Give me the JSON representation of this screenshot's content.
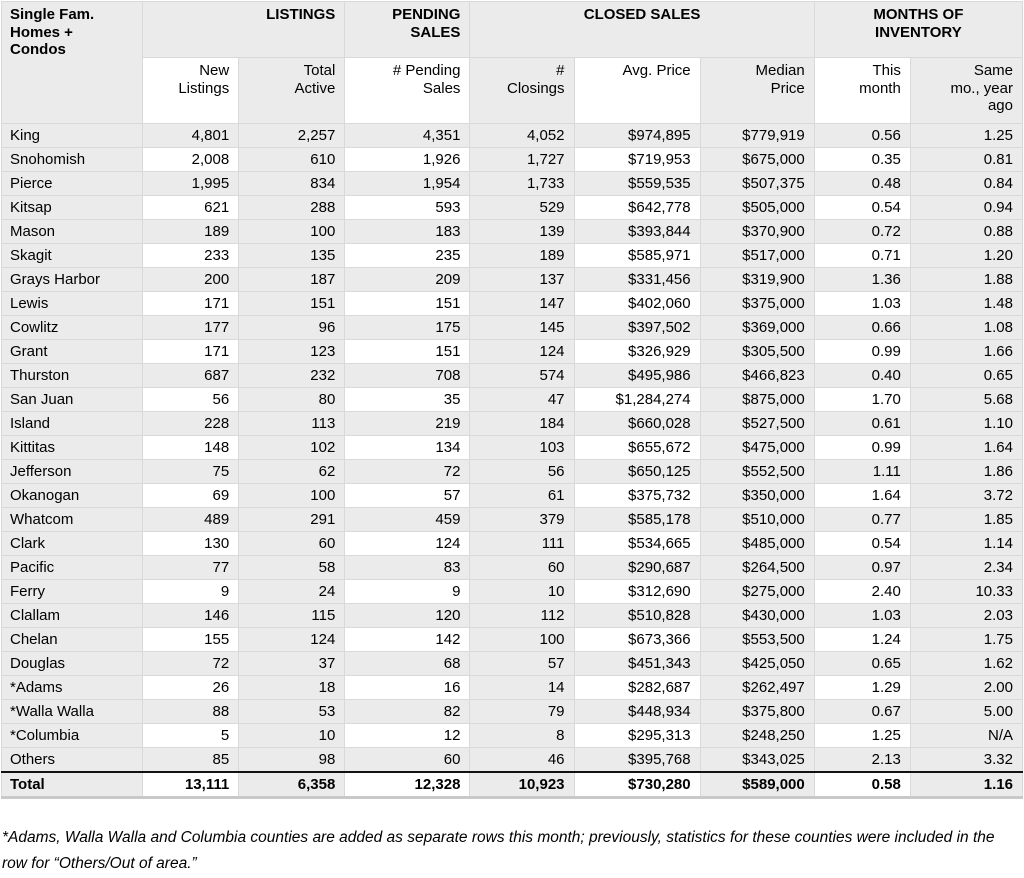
{
  "chart_data": {
    "type": "table",
    "title": "Single Fam.\nHomes +\nCondos",
    "column_groups": [
      {
        "label": "LISTINGS",
        "colspan": 2
      },
      {
        "label": "PENDING\nSALES",
        "colspan": 1
      },
      {
        "label": "CLOSED SALES",
        "colspan": 3
      },
      {
        "label": "MONTHS OF\nINVENTORY",
        "colspan": 2
      }
    ],
    "columns": [
      "New\nListings",
      "Total\nActive",
      "# Pending\nSales",
      "#\nClosings",
      "Avg. Price",
      "Median\nPrice",
      "This\nmonth",
      "Same\nmo., year\nago"
    ],
    "rows": [
      {
        "county": "King",
        "values": [
          "4,801",
          "2,257",
          "4,351",
          "4,052",
          "$974,895",
          "$779,919",
          "0.56",
          "1.25"
        ]
      },
      {
        "county": "Snohomish",
        "values": [
          "2,008",
          "610",
          "1,926",
          "1,727",
          "$719,953",
          "$675,000",
          "0.35",
          "0.81"
        ]
      },
      {
        "county": "Pierce",
        "values": [
          "1,995",
          "834",
          "1,954",
          "1,733",
          "$559,535",
          "$507,375",
          "0.48",
          "0.84"
        ]
      },
      {
        "county": "Kitsap",
        "values": [
          "621",
          "288",
          "593",
          "529",
          "$642,778",
          "$505,000",
          "0.54",
          "0.94"
        ]
      },
      {
        "county": "Mason",
        "values": [
          "189",
          "100",
          "183",
          "139",
          "$393,844",
          "$370,900",
          "0.72",
          "0.88"
        ]
      },
      {
        "county": "Skagit",
        "values": [
          "233",
          "135",
          "235",
          "189",
          "$585,971",
          "$517,000",
          "0.71",
          "1.20"
        ]
      },
      {
        "county": "Grays Harbor",
        "values": [
          "200",
          "187",
          "209",
          "137",
          "$331,456",
          "$319,900",
          "1.36",
          "1.88"
        ]
      },
      {
        "county": "Lewis",
        "values": [
          "171",
          "151",
          "151",
          "147",
          "$402,060",
          "$375,000",
          "1.03",
          "1.48"
        ]
      },
      {
        "county": "Cowlitz",
        "values": [
          "177",
          "96",
          "175",
          "145",
          "$397,502",
          "$369,000",
          "0.66",
          "1.08"
        ]
      },
      {
        "county": "Grant",
        "values": [
          "171",
          "123",
          "151",
          "124",
          "$326,929",
          "$305,500",
          "0.99",
          "1.66"
        ]
      },
      {
        "county": "Thurston",
        "values": [
          "687",
          "232",
          "708",
          "574",
          "$495,986",
          "$466,823",
          "0.40",
          "0.65"
        ]
      },
      {
        "county": "San Juan",
        "values": [
          "56",
          "80",
          "35",
          "47",
          "$1,284,274",
          "$875,000",
          "1.70",
          "5.68"
        ]
      },
      {
        "county": "Island",
        "values": [
          "228",
          "113",
          "219",
          "184",
          "$660,028",
          "$527,500",
          "0.61",
          "1.10"
        ]
      },
      {
        "county": "Kittitas",
        "values": [
          "148",
          "102",
          "134",
          "103",
          "$655,672",
          "$475,000",
          "0.99",
          "1.64"
        ]
      },
      {
        "county": "Jefferson",
        "values": [
          "75",
          "62",
          "72",
          "56",
          "$650,125",
          "$552,500",
          "1.11",
          "1.86"
        ]
      },
      {
        "county": "Okanogan",
        "values": [
          "69",
          "100",
          "57",
          "61",
          "$375,732",
          "$350,000",
          "1.64",
          "3.72"
        ]
      },
      {
        "county": "Whatcom",
        "values": [
          "489",
          "291",
          "459",
          "379",
          "$585,178",
          "$510,000",
          "0.77",
          "1.85"
        ]
      },
      {
        "county": "Clark",
        "values": [
          "130",
          "60",
          "124",
          "111",
          "$534,665",
          "$485,000",
          "0.54",
          "1.14"
        ]
      },
      {
        "county": "Pacific",
        "values": [
          "77",
          "58",
          "83",
          "60",
          "$290,687",
          "$264,500",
          "0.97",
          "2.34"
        ]
      },
      {
        "county": "Ferry",
        "values": [
          "9",
          "24",
          "9",
          "10",
          "$312,690",
          "$275,000",
          "2.40",
          "10.33"
        ]
      },
      {
        "county": "Clallam",
        "values": [
          "146",
          "115",
          "120",
          "112",
          "$510,828",
          "$430,000",
          "1.03",
          "2.03"
        ]
      },
      {
        "county": "Chelan",
        "values": [
          "155",
          "124",
          "142",
          "100",
          "$673,366",
          "$553,500",
          "1.24",
          "1.75"
        ]
      },
      {
        "county": "Douglas",
        "values": [
          "72",
          "37",
          "68",
          "57",
          "$451,343",
          "$425,050",
          "0.65",
          "1.62"
        ]
      },
      {
        "county": "*Adams",
        "values": [
          "26",
          "18",
          "16",
          "14",
          "$282,687",
          "$262,497",
          "1.29",
          "2.00"
        ]
      },
      {
        "county": "*Walla Walla",
        "values": [
          "88",
          "53",
          "82",
          "79",
          "$448,934",
          "$375,800",
          "0.67",
          "5.00"
        ]
      },
      {
        "county": "*Columbia",
        "values": [
          "5",
          "10",
          "12",
          "8",
          "$295,313",
          "$248,250",
          "1.25",
          "N/A"
        ]
      },
      {
        "county": "Others",
        "values": [
          "85",
          "98",
          "60",
          "46",
          "$395,768",
          "$343,025",
          "2.13",
          "3.32"
        ]
      }
    ],
    "total_row": {
      "county": "Total",
      "values": [
        "13,111",
        "6,358",
        "12,328",
        "10,923",
        "$730,280",
        "$589,000",
        "0.58",
        "1.16"
      ]
    },
    "footnote": "*Adams, Walla Walla and Columbia counties are added as separate rows this month; previously, statistics for these counties were included in the row for “Others/Out of area.”",
    "colors": {
      "shaded_cell": "#ebebeb",
      "grid_line": "#d9d9d9",
      "total_rule": "#111111"
    }
  }
}
